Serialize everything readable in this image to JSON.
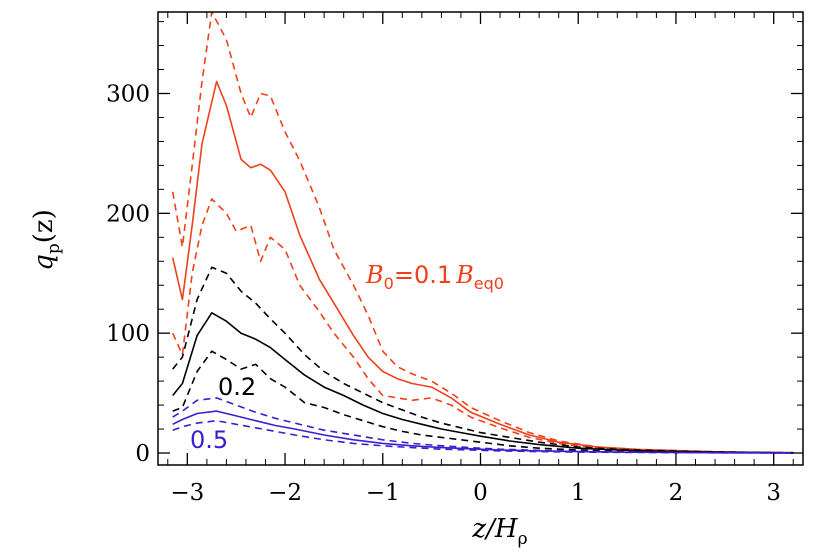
{
  "chart_data": {
    "type": "line",
    "xlabel": {
      "main": "z/H",
      "sub": "ρ"
    },
    "ylabel": {
      "main": "q",
      "sub": "p",
      "arg": "(z)"
    },
    "xlim": [
      -3.3,
      3.3
    ],
    "ylim": [
      -10,
      368
    ],
    "xticks": [
      -3,
      -2,
      -1,
      0,
      1,
      2,
      3
    ],
    "xtick_labels": [
      "−3",
      "−2",
      "−1",
      "0",
      "1",
      "2",
      "3"
    ],
    "yticks": [
      0,
      100,
      200,
      300
    ],
    "ytick_labels": [
      "0",
      "100",
      "200",
      "300"
    ],
    "grid": false,
    "annotations": [
      {
        "id": "red",
        "text_parts": [
          {
            "t": "B",
            "style": "it"
          },
          {
            "t": "0",
            "style": "sub"
          },
          {
            "t": "=0.1",
            "style": "plain"
          },
          {
            "t": "B",
            "style": "it"
          },
          {
            "t": "eq0",
            "style": "sub"
          }
        ],
        "color": "#f0401a"
      },
      {
        "id": "black",
        "text": "0.2",
        "color": "#000000"
      },
      {
        "id": "blue",
        "text": "0.5",
        "color": "#3a1fd0"
      }
    ],
    "series": [
      {
        "group": "red",
        "style": "solid",
        "color": "#f0401a",
        "x": [
          -3.15,
          -3.05,
          -2.95,
          -2.85,
          -2.7,
          -2.6,
          -2.45,
          -2.35,
          -2.25,
          -2.15,
          -2.0,
          -1.85,
          -1.65,
          -1.5,
          -1.3,
          -1.15,
          -1.0,
          -0.85,
          -0.7,
          -0.5,
          -0.3,
          -0.1,
          0.2,
          0.5,
          0.8,
          1.2,
          1.6,
          2.0,
          2.4,
          2.8,
          3.2
        ],
        "y": [
          163,
          128,
          190,
          258,
          310,
          290,
          245,
          238,
          241,
          236,
          218,
          182,
          145,
          125,
          98,
          80,
          68,
          62,
          58,
          55,
          46,
          34,
          24,
          15,
          9,
          5,
          3,
          2,
          1,
          0.5,
          0.3
        ]
      },
      {
        "group": "red",
        "style": "dashed",
        "color": "#f0401a",
        "x": [
          -3.15,
          -3.05,
          -2.95,
          -2.85,
          -2.75,
          -2.6,
          -2.45,
          -2.35,
          -2.25,
          -2.15,
          -2.0,
          -1.85,
          -1.65,
          -1.5,
          -1.3,
          -1.15,
          -1.0,
          -0.85,
          -0.7,
          -0.5,
          -0.3,
          -0.1,
          0.2,
          0.5,
          0.8,
          1.2,
          1.6,
          2.0,
          2.4,
          2.8,
          3.2
        ],
        "y": [
          218,
          172,
          240,
          310,
          368,
          345,
          300,
          280,
          300,
          298,
          268,
          244,
          205,
          170,
          140,
          115,
          85,
          72,
          66,
          60,
          50,
          38,
          27,
          17,
          10,
          5,
          3,
          2,
          1,
          0.5,
          0.3
        ]
      },
      {
        "group": "red",
        "style": "dashed",
        "color": "#f0401a",
        "x": [
          -3.15,
          -3.05,
          -2.95,
          -2.85,
          -2.75,
          -2.6,
          -2.5,
          -2.35,
          -2.25,
          -2.15,
          -2.0,
          -1.85,
          -1.65,
          -1.5,
          -1.3,
          -1.15,
          -1.0,
          -0.85,
          -0.7,
          -0.5,
          -0.3,
          -0.1,
          0.2,
          0.5,
          0.8,
          1.2,
          1.6,
          2.0,
          2.4,
          2.8,
          3.2
        ],
        "y": [
          100,
          82,
          150,
          190,
          212,
          200,
          185,
          190,
          160,
          180,
          170,
          140,
          118,
          100,
          80,
          62,
          48,
          46,
          44,
          46,
          40,
          30,
          21,
          13,
          8,
          4,
          2.5,
          1.5,
          1,
          0.5,
          0.3
        ]
      },
      {
        "group": "black",
        "style": "solid",
        "color": "#000000",
        "x": [
          -3.15,
          -3.05,
          -2.9,
          -2.75,
          -2.6,
          -2.45,
          -2.3,
          -2.15,
          -2.0,
          -1.8,
          -1.6,
          -1.4,
          -1.2,
          -1.0,
          -0.8,
          -0.6,
          -0.4,
          -0.2,
          0.0,
          0.3,
          0.6,
          1.0,
          1.4,
          1.8,
          2.2,
          2.6,
          3.0,
          3.2
        ],
        "y": [
          48,
          58,
          98,
          117,
          110,
          100,
          95,
          88,
          78,
          65,
          55,
          48,
          40,
          33,
          28,
          24,
          20,
          17,
          14,
          10,
          7,
          4,
          2.5,
          1.5,
          1,
          0.6,
          0.3,
          0.2
        ]
      },
      {
        "group": "black",
        "style": "dashed",
        "color": "#000000",
        "x": [
          -3.15,
          -3.05,
          -2.9,
          -2.75,
          -2.6,
          -2.45,
          -2.3,
          -2.15,
          -2.0,
          -1.8,
          -1.6,
          -1.4,
          -1.2,
          -1.0,
          -0.8,
          -0.6,
          -0.4,
          -0.2,
          0.0,
          0.3,
          0.6,
          1.0,
          1.4,
          1.8,
          2.2,
          2.6,
          3.0,
          3.2
        ],
        "y": [
          70,
          80,
          128,
          155,
          150,
          135,
          125,
          112,
          100,
          82,
          68,
          58,
          50,
          42,
          36,
          30,
          25,
          21,
          17,
          13,
          9,
          5,
          3,
          2,
          1.2,
          0.7,
          0.3,
          0.2
        ]
      },
      {
        "group": "black",
        "style": "dashed",
        "color": "#000000",
        "x": [
          -3.15,
          -3.05,
          -2.9,
          -2.75,
          -2.6,
          -2.45,
          -2.3,
          -2.15,
          -2.0,
          -1.8,
          -1.6,
          -1.4,
          -1.2,
          -1.0,
          -0.8,
          -0.6,
          -0.4,
          -0.2,
          0.0,
          0.3,
          0.6,
          1.0,
          1.4,
          1.8,
          2.2,
          2.6,
          3.0,
          3.2
        ],
        "y": [
          35,
          38,
          68,
          85,
          78,
          70,
          74,
          62,
          55,
          42,
          38,
          32,
          27,
          22,
          18,
          15,
          13,
          11,
          9,
          6,
          4,
          2.5,
          1.5,
          1,
          0.6,
          0.3,
          0.2,
          0.1
        ]
      },
      {
        "group": "blue",
        "style": "solid",
        "color": "#3a1fd0",
        "x": [
          -3.15,
          -3.05,
          -2.9,
          -2.7,
          -2.5,
          -2.3,
          -2.1,
          -1.9,
          -1.6,
          -1.3,
          -1.0,
          -0.7,
          -0.4,
          -0.1,
          0.2,
          0.6,
          1.0,
          1.5,
          2.0,
          2.5,
          3.0,
          3.2
        ],
        "y": [
          24,
          28,
          33,
          35,
          31,
          27,
          23,
          20,
          15,
          11,
          8,
          6,
          4.5,
          3.5,
          2.5,
          1.8,
          1.2,
          0.7,
          0.4,
          0.2,
          0.1,
          0.1
        ]
      },
      {
        "group": "blue",
        "style": "dashed",
        "color": "#3a1fd0",
        "x": [
          -3.15,
          -3.05,
          -2.9,
          -2.7,
          -2.5,
          -2.3,
          -2.1,
          -1.9,
          -1.6,
          -1.3,
          -1.0,
          -0.7,
          -0.4,
          -0.1,
          0.2,
          0.6,
          1.0,
          1.5,
          2.0,
          2.5,
          3.0,
          3.2
        ],
        "y": [
          30,
          35,
          44,
          46,
          40,
          34,
          29,
          25,
          19,
          15,
          11,
          8,
          6,
          4.5,
          3.2,
          2.2,
          1.5,
          0.9,
          0.5,
          0.3,
          0.1,
          0.1
        ]
      },
      {
        "group": "blue",
        "style": "dashed",
        "color": "#3a1fd0",
        "x": [
          -3.15,
          -3.05,
          -2.9,
          -2.7,
          -2.5,
          -2.3,
          -2.1,
          -1.9,
          -1.6,
          -1.3,
          -1.0,
          -0.7,
          -0.4,
          -0.1,
          0.2,
          0.6,
          1.0,
          1.5,
          2.0,
          2.5,
          3.0,
          3.2
        ],
        "y": [
          19,
          22,
          25,
          27,
          24,
          21,
          18,
          15,
          11,
          8,
          6,
          4.5,
          3.2,
          2.5,
          1.8,
          1.2,
          0.8,
          0.5,
          0.3,
          0.15,
          0.1,
          0.1
        ]
      }
    ]
  }
}
